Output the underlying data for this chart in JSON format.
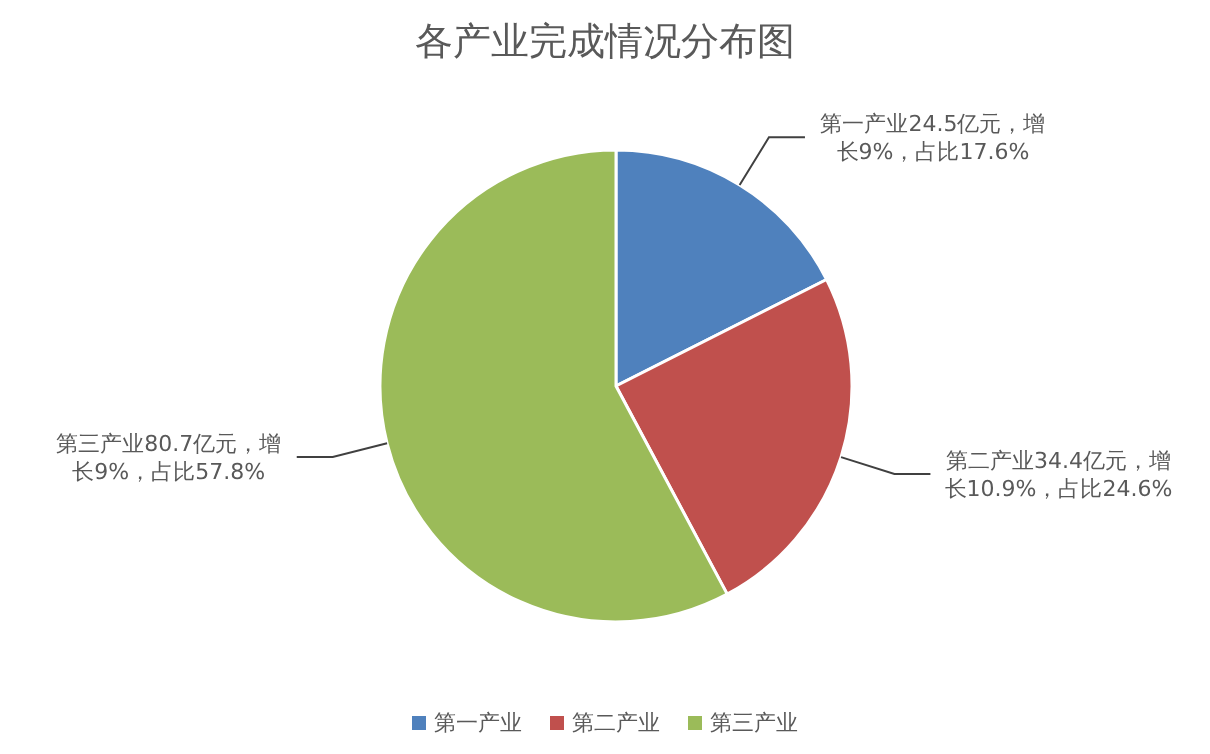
{
  "chart_data": {
    "type": "pie",
    "title": "各产业完成情况分布图",
    "categories": [
      "第一产业",
      "第二产业",
      "第三产业"
    ],
    "values": [
      24.5,
      34.4,
      80.7
    ],
    "colors": [
      "#4f81bd",
      "#c0504d",
      "#9bbb59"
    ],
    "value_labels": [
      "第一产业24.5亿元，增长9%，占比17.6%",
      "第二产业34.4亿元，增长10.9%，占比24.6%",
      "第三产业80.7亿元，增长9%，占比57.8%"
    ],
    "legend": "bottom"
  }
}
